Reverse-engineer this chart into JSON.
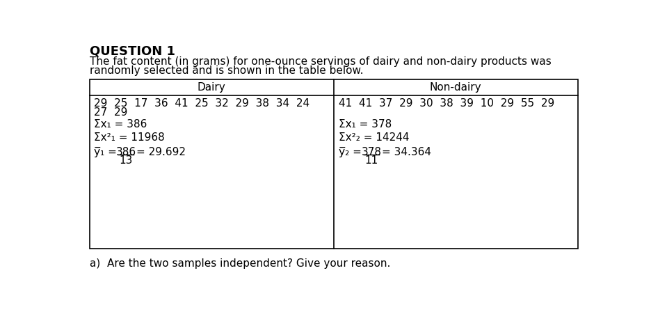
{
  "title": "QUESTION 1",
  "intro_line1": "The fat content (in grams) for one-ounce servings of dairy and non-dairy products was",
  "intro_line2": "randomly selected and is shown in the table below.",
  "dairy_header": "Dairy",
  "nondairy_header": "Non-dairy",
  "dairy_data_line1": "29  25  17  36  41  25  32  29  38  34  24",
  "dairy_data_line2": "27  29",
  "nondairy_data": "41  41  37  29  30  38  39  10  29  55  29",
  "dairy_sum_x": "Σx₁ = 386",
  "dairy_sum_x2": "Σx²₁ = 11968",
  "dairy_mean_num": "386",
  "dairy_mean_den": "13",
  "dairy_mean_val": "= 29.692",
  "dairy_mean_bar": "ẍ̅₁ =",
  "nondairy_sum_x": "Σx₁ = 378",
  "nondairy_sum_x2": "Σx²₂ = 14244",
  "nondairy_mean_num": "378",
  "nondairy_mean_den": "11",
  "nondairy_mean_val": "= 34.364",
  "nondairy_mean_bar": "ẍ̅₂ =",
  "question_a": "a)  Are the two samples independent? Give your reason.",
  "bg_color": "#ffffff",
  "text_color": "#000000",
  "table_border_color": "#000000",
  "fs_title": 13,
  "fs_body": 11,
  "fs_table": 11
}
